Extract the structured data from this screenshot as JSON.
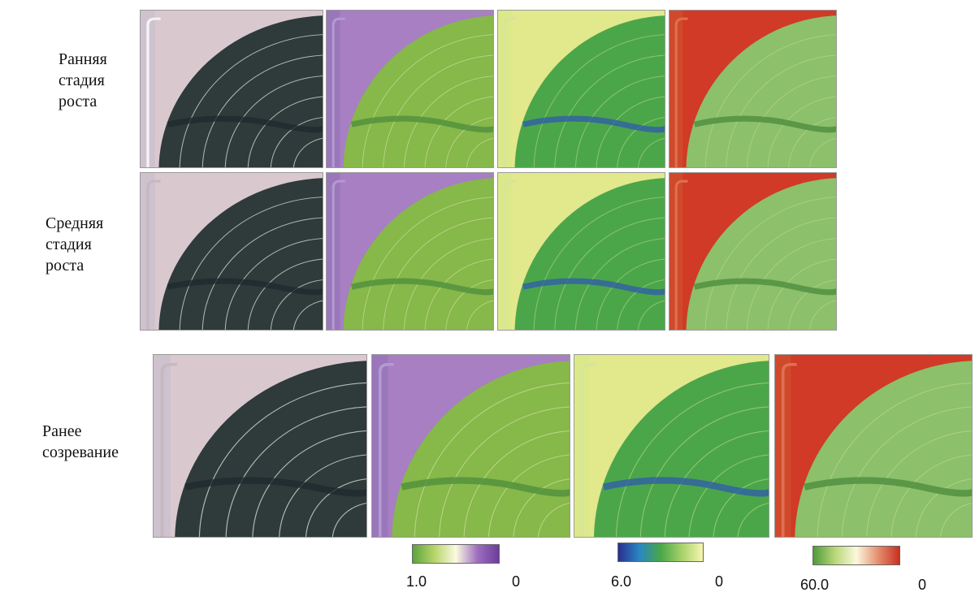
{
  "rows": [
    {
      "label": "Ранняя\nстадия\nроста"
    },
    {
      "label": "Средняя\nстадия\nроста"
    },
    {
      "label": "Ранее\nсозревание"
    }
  ],
  "panels": [
    {
      "type": "rgb",
      "name": "rgb",
      "corner": "#d9c9cf",
      "field": "#2f3a3a",
      "strip": "#cfc2cf",
      "band": "#1f2a30",
      "ring": "#dfe7e0",
      "track": "#c6b8c0"
    },
    {
      "type": "index-a",
      "name": "index-a",
      "corner": "#a77fc2",
      "field": "#86b84a",
      "strip": "#9a77bb",
      "band": "#4f8f3c",
      "ring": "#c9dc9a",
      "track": "#b39ad0"
    },
    {
      "type": "index-b",
      "name": "index-b",
      "corner": "#e2e88c",
      "field": "#4ba64a",
      "strip": "#dce98a",
      "band": "#2f5fa8",
      "ring": "#a8d27a",
      "track": "#d8e49a"
    },
    {
      "type": "index-c",
      "name": "index-c",
      "corner": "#d03a26",
      "field": "#8cc06a",
      "strip": "#cf4a2c",
      "band": "#4e8c3e",
      "ring": "#b6d491",
      "track": "#e07050"
    }
  ],
  "colorbars": [
    {
      "name": "colorbar-1",
      "gradient": [
        "#5aa53c",
        "#b7d46a",
        "#fbfbe0",
        "#9e6fbf",
        "#6a3d9a"
      ],
      "max_label": "1.0",
      "min_label": "0"
    },
    {
      "name": "colorbar-2",
      "gradient": [
        "#2b2f8f",
        "#2a86c2",
        "#4aa64a",
        "#a8d06a",
        "#f5f7b0"
      ],
      "max_label": "6.0",
      "min_label": "0"
    },
    {
      "name": "colorbar-3",
      "gradient": [
        "#4e9b3c",
        "#b8d778",
        "#fcf8dc",
        "#e49070",
        "#c83020"
      ],
      "max_label": "60.0",
      "min_label": "0"
    }
  ]
}
